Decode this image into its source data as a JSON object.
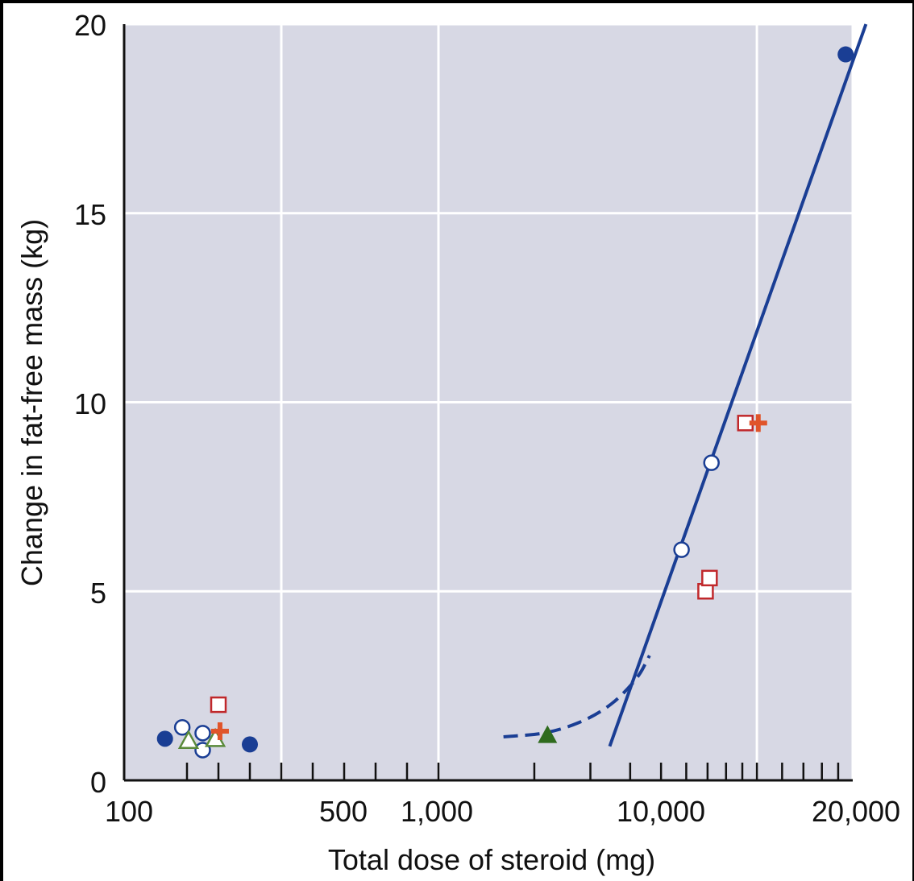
{
  "chart_data": {
    "type": "scatter",
    "x_scale": "log",
    "xlabel": "Total dose of steroid (mg)",
    "ylabel": "Change in fat-free mass (kg)",
    "x_tick_labels": [
      "100",
      "500",
      "1,000",
      "10,000",
      "20,000"
    ],
    "y_tick_labels": [
      "0",
      "5",
      "10",
      "15",
      "20"
    ],
    "y_ticks": [
      0,
      5,
      10,
      15,
      20
    ],
    "ylim": [
      0,
      20
    ],
    "grid": true,
    "colors": {
      "plot_background": "#d7d8e4",
      "grid": "#ffffff",
      "axis": "#111111",
      "blue": "#1a3e94",
      "red": "#c0282b",
      "orange": "#e0542a",
      "green": "#2f6b1d",
      "green_outline": "#5a8a3a"
    },
    "series": [
      {
        "marker": "filled-circle",
        "color": "#1a3e94",
        "points": [
          [
            130,
            1.1
          ],
          [
            400,
            0.95
          ],
          [
            19000,
            19.2
          ]
        ]
      },
      {
        "marker": "open-circle",
        "color": "#1a3e94",
        "points": [
          [
            185,
            1.4
          ],
          [
            250,
            1.25
          ],
          [
            250,
            0.8
          ],
          [
            5800,
            6.1
          ],
          [
            7200,
            8.4
          ]
        ]
      },
      {
        "marker": "open-triangle",
        "color": "#5a8a3a",
        "points": [
          [
            205,
            1.05
          ],
          [
            290,
            1.1
          ]
        ]
      },
      {
        "marker": "filled-triangle",
        "color": "#2f6b1d",
        "points": [
          [
            2200,
            1.2
          ]
        ]
      },
      {
        "marker": "open-square",
        "color": "#c0282b",
        "points": [
          [
            300,
            2.0
          ],
          [
            6900,
            5.0
          ],
          [
            7100,
            5.35
          ],
          [
            9200,
            9.45
          ]
        ]
      },
      {
        "marker": "plus",
        "color": "#e0542a",
        "points": [
          [
            305,
            1.3
          ],
          [
            10100,
            9.45
          ]
        ]
      }
    ],
    "fit_line": {
      "style": "solid",
      "color": "#1a3e94",
      "points": [
        [
          3450,
          0.9
        ],
        [
          22000,
          20.0
        ]
      ]
    },
    "fit_curve": {
      "style": "dashed",
      "color": "#1a3e94",
      "points": [
        [
          1600,
          1.15
        ],
        [
          2300,
          1.25
        ],
        [
          3300,
          1.8
        ],
        [
          4200,
          2.65
        ],
        [
          4600,
          3.3
        ]
      ]
    }
  }
}
